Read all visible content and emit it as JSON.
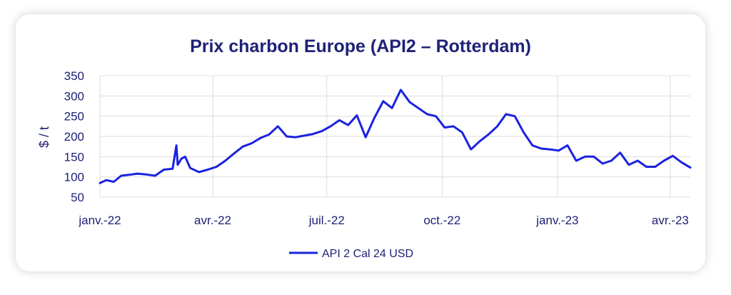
{
  "chart_data": {
    "type": "line",
    "title": "Prix charbon Europe (API2 – Rotterdam)",
    "xlabel": "",
    "ylabel": "$ / t",
    "ylim": [
      50,
      350
    ],
    "yticks": [
      350,
      300,
      250,
      200,
      150,
      100,
      50
    ],
    "xticks": [
      "janv.-22",
      "avr.-22",
      "juil.-22",
      "oct.-22",
      "janv.-23",
      "avr.-23"
    ],
    "grid": true,
    "legend_position": "bottom",
    "series": [
      {
        "name": "API 2 Cal 24 USD",
        "color": "#1a22e0",
        "x": [
          "2022-01-01",
          "2022-01-06",
          "2022-01-12",
          "2022-01-18",
          "2022-01-24",
          "2022-01-31",
          "2022-02-07",
          "2022-02-14",
          "2022-02-21",
          "2022-02-28",
          "2022-03-03",
          "2022-03-04",
          "2022-03-07",
          "2022-03-10",
          "2022-03-14",
          "2022-03-21",
          "2022-03-28",
          "2022-04-04",
          "2022-04-11",
          "2022-04-18",
          "2022-04-25",
          "2022-05-02",
          "2022-05-09",
          "2022-05-16",
          "2022-05-23",
          "2022-05-30",
          "2022-06-06",
          "2022-06-13",
          "2022-06-20",
          "2022-06-27",
          "2022-07-04",
          "2022-07-11",
          "2022-07-18",
          "2022-07-25",
          "2022-08-01",
          "2022-08-08",
          "2022-08-15",
          "2022-08-22",
          "2022-08-29",
          "2022-09-05",
          "2022-09-12",
          "2022-09-19",
          "2022-09-26",
          "2022-10-03",
          "2022-10-10",
          "2022-10-17",
          "2022-10-24",
          "2022-10-31",
          "2022-11-07",
          "2022-11-14",
          "2022-11-21",
          "2022-11-28",
          "2022-12-05",
          "2022-12-12",
          "2022-12-19",
          "2022-12-26",
          "2023-01-02",
          "2023-01-09",
          "2023-01-16",
          "2023-01-23",
          "2023-01-30",
          "2023-02-06",
          "2023-02-13",
          "2023-02-20",
          "2023-02-27",
          "2023-03-06",
          "2023-03-13",
          "2023-03-20",
          "2023-03-27",
          "2023-04-03",
          "2023-04-10",
          "2023-04-17"
        ],
        "values": [
          85,
          92,
          88,
          103,
          105,
          108,
          106,
          103,
          118,
          120,
          178,
          130,
          145,
          150,
          122,
          112,
          118,
          125,
          140,
          158,
          175,
          183,
          196,
          205,
          225,
          200,
          198,
          202,
          206,
          213,
          225,
          240,
          228,
          252,
          198,
          246,
          287,
          270,
          315,
          285,
          270,
          255,
          250,
          222,
          225,
          210,
          168,
          188,
          205,
          225,
          255,
          250,
          210,
          178,
          170,
          168,
          165,
          178,
          140,
          150,
          150,
          133,
          140,
          160,
          130,
          140,
          125,
          125,
          140,
          152,
          136,
          123
        ]
      }
    ]
  }
}
